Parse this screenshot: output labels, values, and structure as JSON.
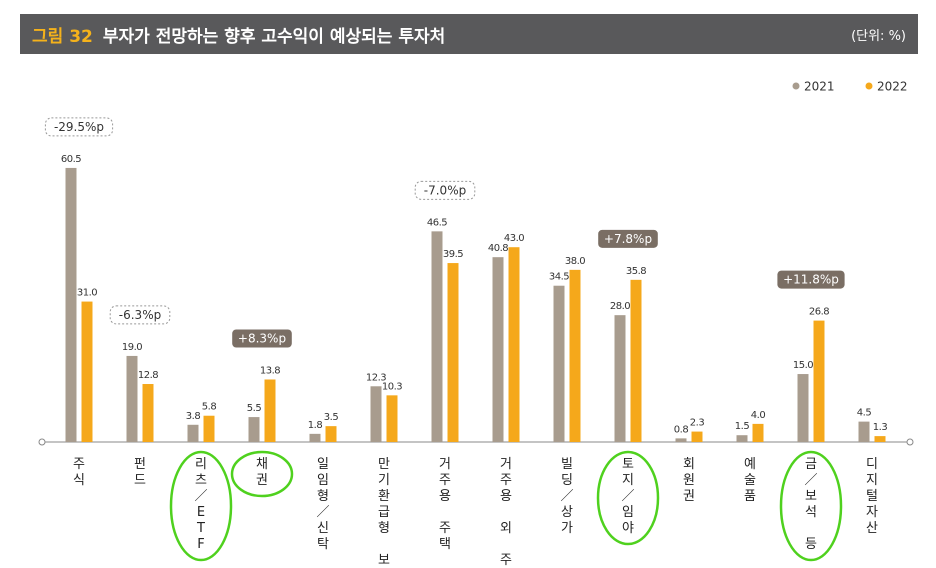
{
  "header": {
    "figure_number": "그림 32",
    "title": "부자가 전망하는 향후 고수익이 예상되는 투자처",
    "unit": "(단위: %)"
  },
  "colors": {
    "header_bg": "#59595b",
    "figure_number": "#f5b21b",
    "series_2021": "#a89c8e",
    "series_2022": "#f5a81b",
    "annotation_filled": "#7a6e64",
    "green_marker": "#4fd11e"
  },
  "chart_data": {
    "type": "bar",
    "categories": [
      "주식",
      "펀드",
      "리츠/ETF",
      "채권",
      "일임형/신탁",
      "만기환급형 보험",
      "거주용 주택",
      "거주용 외 주택",
      "빌딩/상가",
      "토지/임야",
      "회원권",
      "예술품",
      "금/보석 등",
      "디지털자산"
    ],
    "series": [
      {
        "name": "2021",
        "values": [
          60.5,
          19.0,
          3.8,
          5.5,
          1.8,
          12.3,
          46.5,
          40.8,
          34.5,
          28.0,
          0.8,
          1.5,
          15.0,
          4.5
        ]
      },
      {
        "name": "2022",
        "values": [
          31.0,
          12.8,
          5.8,
          13.8,
          3.5,
          10.3,
          39.5,
          43.0,
          38.0,
          35.8,
          2.3,
          4.0,
          26.8,
          1.3
        ]
      }
    ],
    "value_labels": {
      "2021": [
        "60.5",
        "19.0",
        "3.8",
        "5.5",
        "1.8",
        "12.3",
        "46.5",
        "40.8",
        "34.5",
        "28.0",
        "0.8",
        "1.5",
        "15.0",
        "4.5"
      ],
      "2022": [
        "31.0",
        "12.8",
        "5.8",
        "13.8",
        "3.5",
        "10.3",
        "39.5",
        "43.0",
        "38.0",
        "35.8",
        "2.3",
        "4.0",
        "26.8",
        "1.3"
      ]
    },
    "ylim": [
      0,
      62
    ],
    "grid": false,
    "legend_position": "top-right",
    "annotations": [
      {
        "category_index": 0,
        "text": "-29.5%p",
        "style": "dashed"
      },
      {
        "category_index": 1,
        "text": "-6.3%p",
        "style": "dashed"
      },
      {
        "category_index": 3,
        "text": "+8.3%p",
        "style": "filled"
      },
      {
        "category_index": 6,
        "text": "-7.0%p",
        "style": "dashed"
      },
      {
        "category_index": 9,
        "text": "+7.8%p",
        "style": "filled"
      },
      {
        "category_index": 12,
        "text": "+11.8%p",
        "style": "filled"
      }
    ],
    "highlighted_categories": [
      2,
      3,
      9,
      12
    ]
  }
}
